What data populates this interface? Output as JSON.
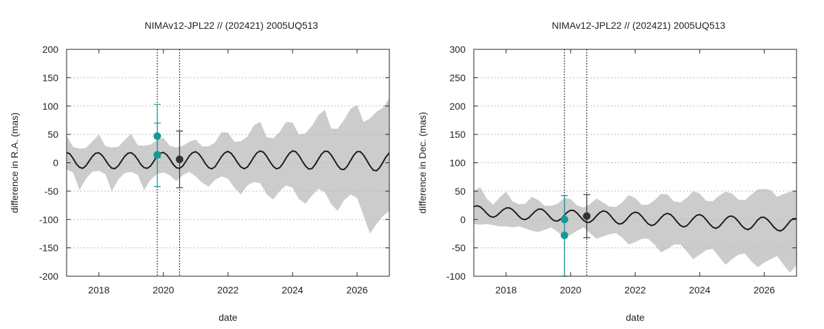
{
  "chart_data": [
    {
      "type": "line",
      "title": "NIMAv12-JPL22 // (202421) 2005UQ513",
      "xlabel": "date",
      "ylabel": "difference in R.A. (mas)",
      "xlim": [
        2017.0,
        2027.0
      ],
      "ylim": [
        -200,
        200
      ],
      "xticks": [
        2018,
        2020,
        2022,
        2024,
        2026
      ],
      "yticks": [
        -200,
        -150,
        -100,
        -50,
        0,
        50,
        100,
        150,
        200
      ],
      "grid": true,
      "series": [
        {
          "name": "difference curve",
          "kind": "line",
          "color": "#1a1a1a",
          "x": [
            2017.0,
            2017.1,
            2017.2,
            2017.3,
            2017.4,
            2017.5,
            2017.6,
            2017.7,
            2017.8,
            2017.9,
            2018.0,
            2018.1,
            2018.2,
            2018.3,
            2018.4,
            2018.5,
            2018.6,
            2018.7,
            2018.8,
            2018.9,
            2019.0,
            2019.1,
            2019.2,
            2019.3,
            2019.4,
            2019.5,
            2019.6,
            2019.7,
            2019.8,
            2019.9,
            2020.0,
            2020.1,
            2020.2,
            2020.3,
            2020.4,
            2020.5,
            2020.6,
            2020.7,
            2020.8,
            2020.9,
            2021.0,
            2021.1,
            2021.2,
            2021.3,
            2021.4,
            2021.5,
            2021.6,
            2021.7,
            2021.8,
            2021.9,
            2022.0,
            2022.1,
            2022.2,
            2022.3,
            2022.4,
            2022.5,
            2022.6,
            2022.7,
            2022.8,
            2022.9,
            2023.0,
            2023.1,
            2023.2,
            2023.3,
            2023.4,
            2023.5,
            2023.6,
            2023.7,
            2023.8,
            2023.9,
            2024.0,
            2024.1,
            2024.2,
            2024.3,
            2024.4,
            2024.5,
            2024.6,
            2024.7,
            2024.8,
            2024.9,
            2025.0,
            2025.1,
            2025.2,
            2025.3,
            2025.4,
            2025.5,
            2025.6,
            2025.7,
            2025.8,
            2025.9,
            2026.0,
            2026.1,
            2026.2,
            2026.3,
            2026.4,
            2026.5,
            2026.6,
            2026.7,
            2026.8,
            2026.9,
            2027.0
          ],
          "y": [
            18,
            15.8,
            7.8,
            -1.8,
            -8,
            -9.8,
            -5.2,
            3.2,
            11.5,
            16.8,
            17.6,
            13,
            5.2,
            -3.6,
            -9.6,
            -10.2,
            -5.4,
            3.1,
            11.3,
            16.8,
            17.8,
            13.6,
            6,
            -3,
            -8.6,
            -9.8,
            -5.8,
            2.6,
            11.3,
            17,
            18.2,
            14.2,
            6.5,
            -2.7,
            -8.6,
            -10,
            -5.6,
            3,
            12,
            17.8,
            19.6,
            15.6,
            7.8,
            -1.4,
            -8.4,
            -10.6,
            -7,
            1.8,
            11,
            17.7,
            20,
            16.6,
            9,
            0,
            -7.4,
            -10.4,
            -7.6,
            0.6,
            10,
            17.6,
            20.8,
            18.6,
            11.4,
            2,
            -6.2,
            -10.6,
            -8.8,
            -1.4,
            8.2,
            16.6,
            21,
            19.4,
            12.8,
            3.2,
            -5.6,
            -11,
            -10.4,
            -3.4,
            6.4,
            15.4,
            20.6,
            19.8,
            13.6,
            4.4,
            -5,
            -11.4,
            -11.8,
            -5.8,
            4,
            13.6,
            19.6,
            19.6,
            13.6,
            4.4,
            -5.4,
            -12.8,
            -14,
            -8.6,
            0.8,
            10.6,
            17.6
          ]
        },
        {
          "name": "uncertainty upper",
          "kind": "band-upper",
          "color": "#cccccc",
          "x": [
            2017.0,
            2017.2,
            2017.4,
            2017.6,
            2017.8,
            2018.0,
            2018.2,
            2018.4,
            2018.6,
            2018.8,
            2019.0,
            2019.2,
            2019.4,
            2019.6,
            2019.8,
            2020.0,
            2020.2,
            2020.4,
            2020.6,
            2020.8,
            2021.0,
            2021.2,
            2021.4,
            2021.6,
            2021.8,
            2022.0,
            2022.2,
            2022.4,
            2022.6,
            2022.8,
            2023.0,
            2023.2,
            2023.4,
            2023.6,
            2023.8,
            2024.0,
            2024.2,
            2024.4,
            2024.6,
            2024.8,
            2025.0,
            2025.2,
            2025.4,
            2025.6,
            2025.8,
            2026.0,
            2026.2,
            2026.4,
            2026.6,
            2026.8,
            2027.0
          ],
          "y": [
            48,
            28,
            25,
            26,
            38,
            50,
            30,
            27,
            28,
            40,
            51,
            31,
            30,
            32,
            40,
            44,
            30,
            27,
            30,
            37,
            41,
            29,
            29,
            36,
            54,
            53,
            37,
            38,
            46,
            66,
            72,
            45,
            43,
            54,
            72,
            71,
            50,
            52,
            65,
            84,
            93,
            60,
            60,
            76,
            95,
            102,
            72,
            78,
            90,
            97,
            114
          ]
        },
        {
          "name": "uncertainty lower",
          "kind": "band-lower",
          "color": "#cccccc",
          "x": [
            2017.0,
            2017.2,
            2017.4,
            2017.6,
            2017.8,
            2018.0,
            2018.2,
            2018.4,
            2018.6,
            2018.8,
            2019.0,
            2019.2,
            2019.4,
            2019.6,
            2019.8,
            2020.0,
            2020.2,
            2020.4,
            2020.6,
            2020.8,
            2021.0,
            2021.2,
            2021.4,
            2021.6,
            2021.8,
            2022.0,
            2022.2,
            2022.4,
            2022.6,
            2022.8,
            2023.0,
            2023.2,
            2023.4,
            2023.6,
            2023.8,
            2024.0,
            2024.2,
            2024.4,
            2024.6,
            2024.8,
            2025.0,
            2025.2,
            2025.4,
            2025.6,
            2025.8,
            2026.0,
            2026.2,
            2026.4,
            2026.6,
            2026.8,
            2027.0
          ],
          "y": [
            -12,
            -17,
            -48,
            -28,
            -16,
            -14,
            -20,
            -50,
            -30,
            -18,
            -16,
            -21,
            -48,
            -30,
            -20,
            -17,
            -22,
            -32,
            -22,
            -16,
            -24,
            -35,
            -42,
            -30,
            -24,
            -28,
            -44,
            -56,
            -40,
            -34,
            -36,
            -56,
            -65,
            -50,
            -40,
            -44,
            -64,
            -72,
            -58,
            -46,
            -52,
            -73,
            -85,
            -66,
            -56,
            -62,
            -93,
            -125,
            -108,
            -94,
            -85
          ]
        },
        {
          "name": "observation group 1",
          "kind": "points",
          "color": "#159a96",
          "x": [
            2019.81,
            2019.81
          ],
          "y": [
            47,
            14
          ],
          "err_low": [
            38,
            56
          ],
          "err_high": [
            56,
            56
          ]
        },
        {
          "name": "observation group 2",
          "kind": "points",
          "color": "#333333",
          "x": [
            2020.5
          ],
          "y": [
            6
          ],
          "err_low": [
            50
          ],
          "err_high": [
            50
          ]
        }
      ],
      "vlines": [
        2019.81,
        2020.5
      ]
    },
    {
      "type": "line",
      "title": "NIMAv12-JPL22 // (202421) 2005UQ513",
      "xlabel": "date",
      "ylabel": "difference in Dec. (mas)",
      "xlim": [
        2017.0,
        2027.0
      ],
      "ylim": [
        -100,
        300
      ],
      "xticks": [
        2018,
        2020,
        2022,
        2024,
        2026
      ],
      "yticks": [
        -100,
        -50,
        0,
        50,
        100,
        150,
        200,
        250,
        300
      ],
      "grid": true,
      "series": [
        {
          "name": "difference curve",
          "kind": "line",
          "color": "#1a1a1a",
          "x": [
            2017.0,
            2017.1,
            2017.2,
            2017.3,
            2017.4,
            2017.5,
            2017.6,
            2017.7,
            2017.8,
            2017.9,
            2018.0,
            2018.1,
            2018.2,
            2018.3,
            2018.4,
            2018.5,
            2018.6,
            2018.7,
            2018.8,
            2018.9,
            2019.0,
            2019.1,
            2019.2,
            2019.3,
            2019.4,
            2019.5,
            2019.6,
            2019.7,
            2019.8,
            2019.9,
            2020.0,
            2020.1,
            2020.2,
            2020.3,
            2020.4,
            2020.5,
            2020.6,
            2020.7,
            2020.8,
            2020.9,
            2021.0,
            2021.1,
            2021.2,
            2021.3,
            2021.4,
            2021.5,
            2021.6,
            2021.7,
            2021.8,
            2021.9,
            2022.0,
            2022.1,
            2022.2,
            2022.3,
            2022.4,
            2022.5,
            2022.6,
            2022.7,
            2022.8,
            2022.9,
            2023.0,
            2023.1,
            2023.2,
            2023.3,
            2023.4,
            2023.5,
            2023.6,
            2023.7,
            2023.8,
            2023.9,
            2024.0,
            2024.1,
            2024.2,
            2024.3,
            2024.4,
            2024.5,
            2024.6,
            2024.7,
            2024.8,
            2024.9,
            2025.0,
            2025.1,
            2025.2,
            2025.3,
            2025.4,
            2025.5,
            2025.6,
            2025.7,
            2025.8,
            2025.9,
            2026.0,
            2026.1,
            2026.2,
            2026.3,
            2026.4,
            2026.5,
            2026.6,
            2026.7,
            2026.8,
            2026.9,
            2027.0
          ],
          "y": [
            22.5,
            24.2,
            22.3,
            17.2,
            10.8,
            5.7,
            4.1,
            6.4,
            11.4,
            16.8,
            20.3,
            20.6,
            17.4,
            11.8,
            5.4,
            0.8,
            -0.1,
            3,
            8.6,
            14.4,
            18.2,
            18.4,
            14.6,
            8.4,
            1.9,
            -2.4,
            -2.7,
            1.1,
            7.2,
            13,
            16.3,
            15.8,
            11.4,
            4.8,
            -1.5,
            -5.2,
            -4.7,
            -0.3,
            6.2,
            12,
            15,
            14,
            9.2,
            2.1,
            -4.4,
            -7.9,
            -7,
            -2,
            4.8,
            10.6,
            13,
            11.4,
            6,
            -1.2,
            -7.6,
            -10.6,
            -9,
            -3.6,
            3.2,
            8.7,
            10.8,
            8.8,
            3,
            -4.3,
            -10.4,
            -13,
            -11,
            -5,
            2,
            7.2,
            8.7,
            6,
            -0.3,
            -7.6,
            -13.3,
            -15.6,
            -12.8,
            -6.3,
            0.7,
            5.4,
            6,
            2.8,
            -3.6,
            -10.8,
            -16,
            -17.8,
            -14.6,
            -8,
            -0.6,
            3.8,
            3.8,
            0,
            -6.6,
            -13.6,
            -18.6,
            -20.2,
            -16.8,
            -10.1,
            -2.8,
            1.6,
            1.2
          ]
        },
        {
          "name": "uncertainty upper",
          "kind": "band-upper",
          "color": "#cccccc",
          "x": [
            2017.0,
            2017.2,
            2017.4,
            2017.6,
            2017.8,
            2018.0,
            2018.2,
            2018.4,
            2018.6,
            2018.8,
            2019.0,
            2019.2,
            2019.4,
            2019.6,
            2019.8,
            2020.0,
            2020.2,
            2020.4,
            2020.6,
            2020.8,
            2021.0,
            2021.2,
            2021.4,
            2021.6,
            2021.8,
            2022.0,
            2022.2,
            2022.4,
            2022.6,
            2022.8,
            2023.0,
            2023.2,
            2023.4,
            2023.6,
            2023.8,
            2024.0,
            2024.2,
            2024.4,
            2024.6,
            2024.8,
            2025.0,
            2025.2,
            2025.4,
            2025.6,
            2025.8,
            2026.0,
            2026.2,
            2026.4,
            2026.6,
            2026.8,
            2027.0
          ],
          "y": [
            50,
            57,
            37,
            26,
            39,
            49,
            32,
            27,
            28,
            40,
            34,
            24,
            24,
            28,
            38,
            36,
            25,
            21,
            27,
            37,
            30,
            23,
            22,
            30,
            43,
            38,
            26,
            26,
            34,
            45,
            44,
            32,
            30,
            38,
            50,
            46,
            33,
            32,
            42,
            49,
            46,
            35,
            34,
            44,
            53,
            54,
            52,
            40,
            45,
            49,
            50
          ]
        },
        {
          "name": "uncertainty lower",
          "kind": "band-lower",
          "color": "#cccccc",
          "x": [
            2017.0,
            2017.2,
            2017.4,
            2017.6,
            2017.8,
            2018.0,
            2018.2,
            2018.4,
            2018.6,
            2018.8,
            2019.0,
            2019.2,
            2019.4,
            2019.6,
            2019.8,
            2020.0,
            2020.2,
            2020.4,
            2020.6,
            2020.8,
            2021.0,
            2021.2,
            2021.4,
            2021.6,
            2021.8,
            2022.0,
            2022.2,
            2022.4,
            2022.6,
            2022.8,
            2023.0,
            2023.2,
            2023.4,
            2023.6,
            2023.8,
            2024.0,
            2024.2,
            2024.4,
            2024.6,
            2024.8,
            2025.0,
            2025.2,
            2025.4,
            2025.6,
            2025.8,
            2026.0,
            2026.2,
            2026.4,
            2026.6,
            2026.8,
            2027.0
          ],
          "y": [
            -8,
            -9,
            -8,
            -10,
            -12,
            -12,
            -14,
            -12,
            -16,
            -20,
            -22,
            -18,
            -14,
            -22,
            -30,
            -27,
            -20,
            -14,
            -24,
            -34,
            -30,
            -26,
            -24,
            -32,
            -44,
            -40,
            -34,
            -34,
            -44,
            -58,
            -52,
            -44,
            -44,
            -56,
            -70,
            -62,
            -54,
            -52,
            -66,
            -80,
            -70,
            -62,
            -60,
            -74,
            -84,
            -76,
            -70,
            -64,
            -80,
            -94,
            -80
          ]
        },
        {
          "name": "observation group 1",
          "kind": "points",
          "color": "#159a96",
          "x": [
            2019.81,
            2019.81
          ],
          "y": [
            0,
            -28
          ],
          "err_low": [
            100,
            72
          ],
          "err_high": [
            42,
            70
          ]
        },
        {
          "name": "observation group 2",
          "kind": "points",
          "color": "#333333",
          "x": [
            2020.5
          ],
          "y": [
            6
          ],
          "err_low": [
            38
          ],
          "err_high": [
            38
          ]
        }
      ],
      "vlines": [
        2019.81,
        2020.5
      ]
    }
  ]
}
